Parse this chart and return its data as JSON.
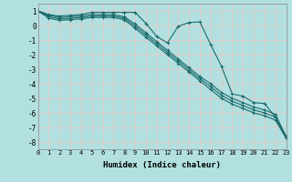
{
  "xlabel": "Humidex (Indice chaleur)",
  "background_color": "#b2e0e0",
  "grid_color": "#e8c8c8",
  "line_color": "#1a6b6b",
  "xlim": [
    0,
    23
  ],
  "ylim": [
    -8.5,
    1.5
  ],
  "yticks": [
    1,
    0,
    -1,
    -2,
    -3,
    -4,
    -5,
    -6,
    -7,
    -8
  ],
  "xticks": [
    0,
    1,
    2,
    3,
    4,
    5,
    6,
    7,
    8,
    9,
    10,
    11,
    12,
    13,
    14,
    15,
    16,
    17,
    18,
    19,
    20,
    21,
    22,
    23
  ],
  "series1_x": [
    0,
    1,
    2,
    3,
    4,
    5,
    6,
    7,
    8,
    9,
    10,
    11,
    12,
    13,
    14,
    15,
    16,
    17,
    18,
    19,
    20,
    21,
    22,
    23
  ],
  "series1_y": [
    1.0,
    0.75,
    0.65,
    0.7,
    0.75,
    0.9,
    0.9,
    0.9,
    0.9,
    0.9,
    0.15,
    -0.75,
    -1.2,
    -0.05,
    0.2,
    0.25,
    -1.3,
    -2.8,
    -4.7,
    -4.85,
    -5.3,
    -5.35,
    -6.3,
    -7.6
  ],
  "series2_x": [
    0,
    1,
    2,
    3,
    4,
    5,
    6,
    7,
    8,
    9,
    10,
    11,
    12,
    13,
    14,
    15,
    16,
    17,
    18,
    19,
    20,
    21,
    22,
    23
  ],
  "series2_y": [
    1.0,
    0.7,
    0.55,
    0.6,
    0.65,
    0.75,
    0.75,
    0.75,
    0.6,
    0.1,
    -0.5,
    -1.1,
    -1.7,
    -2.3,
    -2.9,
    -3.5,
    -4.0,
    -4.6,
    -5.0,
    -5.3,
    -5.6,
    -5.8,
    -6.1,
    -7.65
  ],
  "series3_x": [
    0,
    1,
    2,
    3,
    4,
    5,
    6,
    7,
    8,
    9,
    10,
    11,
    12,
    13,
    14,
    15,
    16,
    17,
    18,
    19,
    20,
    21,
    22,
    23
  ],
  "series3_y": [
    1.0,
    0.6,
    0.45,
    0.5,
    0.55,
    0.65,
    0.65,
    0.65,
    0.5,
    -0.05,
    -0.65,
    -1.25,
    -1.85,
    -2.45,
    -3.05,
    -3.65,
    -4.2,
    -4.8,
    -5.2,
    -5.5,
    -5.8,
    -6.0,
    -6.3,
    -7.7
  ],
  "series4_x": [
    0,
    1,
    2,
    3,
    4,
    5,
    6,
    7,
    8,
    9,
    10,
    11,
    12,
    13,
    14,
    15,
    16,
    17,
    18,
    19,
    20,
    21,
    22,
    23
  ],
  "series4_y": [
    1.0,
    0.5,
    0.35,
    0.4,
    0.45,
    0.55,
    0.55,
    0.55,
    0.4,
    -0.2,
    -0.8,
    -1.4,
    -2.0,
    -2.6,
    -3.2,
    -3.8,
    -4.4,
    -5.0,
    -5.4,
    -5.7,
    -6.0,
    -6.2,
    -6.5,
    -7.75
  ]
}
